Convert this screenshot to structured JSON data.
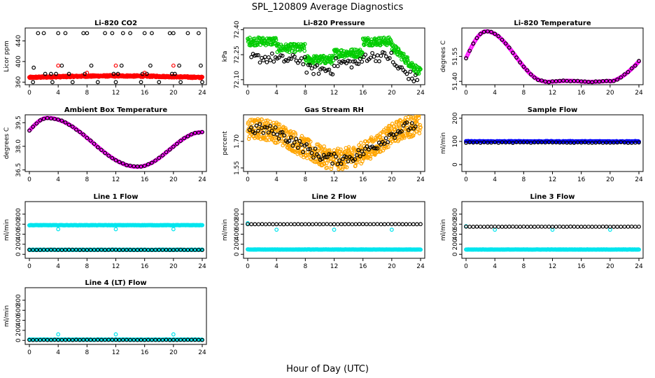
{
  "title": "SPL_120809  Average Diagnostics",
  "xlabel": "Hour of Day (UTC)",
  "colors": {
    "black": "#000000",
    "red": "#ff0000",
    "green": "#00cc00",
    "magenta": "#ff00ff",
    "orange": "#ffa500",
    "blue": "#0000ff",
    "cyan": "#00e5ee"
  },
  "chart_data": [
    {
      "type": "scatter",
      "title": "Li-820 CO2",
      "ylabel": "Licor ppm",
      "xlim": [
        0,
        24
      ],
      "ylim": [
        355,
        465
      ],
      "xticks": [
        0,
        4,
        8,
        12,
        16,
        20,
        24
      ],
      "yticks": [
        360,
        400,
        440
      ],
      "series": [
        {
          "color": "#ff0000",
          "style": "line",
          "gen": "co2_red"
        },
        {
          "color": "#000000",
          "style": "points",
          "x": [
            0.5,
            1.2,
            2.0,
            3.2,
            4.0,
            5.0,
            6.0,
            7.5,
            8.0,
            9.5,
            10.5,
            11.5,
            12.0,
            13.0,
            14.0,
            15.5,
            16.0,
            17.0,
            18.0,
            19.5,
            20.0,
            21.0,
            22.0,
            23.5,
            24.0,
            0.6,
            2.2,
            3.0,
            3.7,
            4.5,
            5.5,
            7.7,
            8.6,
            11.7,
            12.3,
            12.8,
            15.7,
            16.3,
            16.8,
            19.8,
            20.2,
            20.8,
            23.8
          ],
          "y": [
            360,
            455,
            455,
            360,
            455,
            455,
            360,
            455,
            455,
            360,
            455,
            455,
            360,
            455,
            455,
            360,
            455,
            455,
            360,
            455,
            455,
            360,
            455,
            455,
            360,
            388,
            376,
            376,
            376,
            392,
            376,
            376,
            392,
            376,
            376,
            392,
            376,
            376,
            392,
            376,
            376,
            392,
            392
          ]
        },
        {
          "color": "#ff0000",
          "style": "points",
          "x": [
            4.0,
            8.0,
            12.0,
            16.0,
            20.0
          ],
          "y": [
            392,
            378,
            392,
            378,
            392
          ]
        }
      ]
    },
    {
      "type": "scatter",
      "title": "Li-820 Pressure",
      "ylabel": "kPa",
      "xlim": [
        0,
        24
      ],
      "ylim": [
        72.07,
        72.41
      ],
      "xticks": [
        0,
        4,
        8,
        12,
        16,
        20,
        24
      ],
      "yticks": [
        72.1,
        72.25,
        72.4
      ],
      "ytickdec": 2,
      "series": [
        {
          "color": "#00cc00",
          "style": "band",
          "gen": "press_green"
        },
        {
          "color": "#000000",
          "style": "points",
          "gen": "press_black"
        }
      ]
    },
    {
      "type": "scatter",
      "title": "Li-820 Temperature",
      "ylabel": "degrees C",
      "xlim": [
        0,
        24
      ],
      "ylim": [
        51.38,
        51.72
      ],
      "xticks": [
        0,
        4,
        8,
        12,
        16,
        20,
        24
      ],
      "yticks": [
        51.4,
        51.55
      ],
      "ytickdec": 2,
      "series": [
        {
          "color": "#ff00ff",
          "style": "curve",
          "gen": "lt_mag"
        },
        {
          "color": "#000000",
          "style": "points",
          "gen": "lt_blk"
        }
      ]
    },
    {
      "type": "scatter",
      "title": "Ambient Box Temperature",
      "ylabel": "degrees C",
      "xlim": [
        0,
        24
      ],
      "ylim": [
        36.4,
        40.0
      ],
      "xticks": [
        0,
        4,
        8,
        12,
        16,
        20,
        24
      ],
      "yticks": [
        36.5,
        38.0,
        39.5
      ],
      "ytickdec": 1,
      "series": [
        {
          "color": "#ff00ff",
          "style": "curve",
          "gen": "amb_mag"
        },
        {
          "color": "#000000",
          "style": "points",
          "gen": "amb_blk"
        }
      ]
    },
    {
      "type": "scatter",
      "title": "Gas Stream RH",
      "ylabel": "percent",
      "xlim": [
        0,
        24
      ],
      "ylim": [
        1.53,
        1.85
      ],
      "xticks": [
        0,
        4,
        8,
        12,
        16,
        20,
        24
      ],
      "yticks": [
        1.55,
        1.7
      ],
      "ytickdec": 2,
      "series": [
        {
          "color": "#ffa500",
          "style": "band",
          "gen": "rh_orange"
        },
        {
          "color": "#000000",
          "style": "points",
          "gen": "rh_blk"
        }
      ]
    },
    {
      "type": "scatter",
      "title": "Sample Flow",
      "ylabel": "ml/min",
      "xlim": [
        0,
        24
      ],
      "ylim": [
        -30,
        215
      ],
      "xticks": [
        0,
        4,
        8,
        12,
        16,
        20,
        24
      ],
      "yticks": [
        0,
        100,
        200
      ],
      "series": [
        {
          "color": "#0000ff",
          "style": "line",
          "gen": "flat_blue_100"
        },
        {
          "color": "#000000",
          "style": "points",
          "gen": "flat_black_95"
        }
      ]
    },
    {
      "type": "scatter",
      "title": "Line 1 Flow",
      "ylabel": "ml/min",
      "xlim": [
        0,
        24
      ],
      "ylim": [
        -80,
        1050
      ],
      "xticks": [
        0,
        4,
        8,
        12,
        16,
        20,
        24
      ],
      "yticks": [
        0,
        200,
        400,
        600,
        800
      ],
      "series": [
        {
          "color": "#00e5ee",
          "style": "line",
          "value": 580
        },
        {
          "color": "#00e5ee",
          "style": "points",
          "x": [
            4,
            12,
            20
          ],
          "y": [
            500,
            500,
            500
          ]
        },
        {
          "color": "#00e5ee",
          "style": "line",
          "value": 90
        },
        {
          "color": "#000000",
          "style": "points",
          "gen": "flat",
          "value": 88
        }
      ]
    },
    {
      "type": "scatter",
      "title": "Line 2 Flow",
      "ylabel": "ml/min",
      "xlim": [
        0,
        24
      ],
      "ylim": [
        -80,
        1050
      ],
      "xticks": [
        0,
        4,
        8,
        12,
        16,
        20,
        24
      ],
      "yticks": [
        0,
        200,
        400,
        600,
        800
      ],
      "series": [
        {
          "color": "#00e5ee",
          "style": "line",
          "value": 95
        },
        {
          "color": "#00e5ee",
          "style": "points",
          "x": [
            0,
            4,
            12,
            20
          ],
          "y": [
            620,
            490,
            490,
            490
          ]
        },
        {
          "color": "#000000",
          "style": "points",
          "gen": "flat",
          "value": 600
        }
      ]
    },
    {
      "type": "scatter",
      "title": "Line 3 Flow",
      "ylabel": "ml/min",
      "xlim": [
        0,
        24
      ],
      "ylim": [
        -80,
        1050
      ],
      "xticks": [
        0,
        4,
        8,
        12,
        16,
        20,
        24
      ],
      "yticks": [
        0,
        200,
        400,
        600,
        800
      ],
      "series": [
        {
          "color": "#00e5ee",
          "style": "line",
          "value": 95
        },
        {
          "color": "#00e5ee",
          "style": "points",
          "x": [
            0,
            4,
            12,
            20
          ],
          "y": [
            560,
            490,
            490,
            490
          ]
        },
        {
          "color": "#000000",
          "style": "points",
          "gen": "flat",
          "value": 550
        }
      ]
    },
    {
      "type": "scatter",
      "title": "Line 4 (LT) Flow",
      "ylabel": "ml/min",
      "xlim": [
        0,
        24
      ],
      "ylim": [
        -80,
        1050
      ],
      "xticks": [
        0,
        4,
        8,
        12,
        16,
        20,
        24
      ],
      "yticks": [
        0,
        200,
        400,
        600,
        800
      ],
      "series": [
        {
          "color": "#00e5ee",
          "style": "line",
          "value": 15
        },
        {
          "color": "#00e5ee",
          "style": "points",
          "x": [
            0,
            4,
            12,
            20
          ],
          "y": [
            20,
            120,
            120,
            120
          ]
        },
        {
          "color": "#000000",
          "style": "points",
          "gen": "flat",
          "value": 10
        }
      ]
    }
  ]
}
